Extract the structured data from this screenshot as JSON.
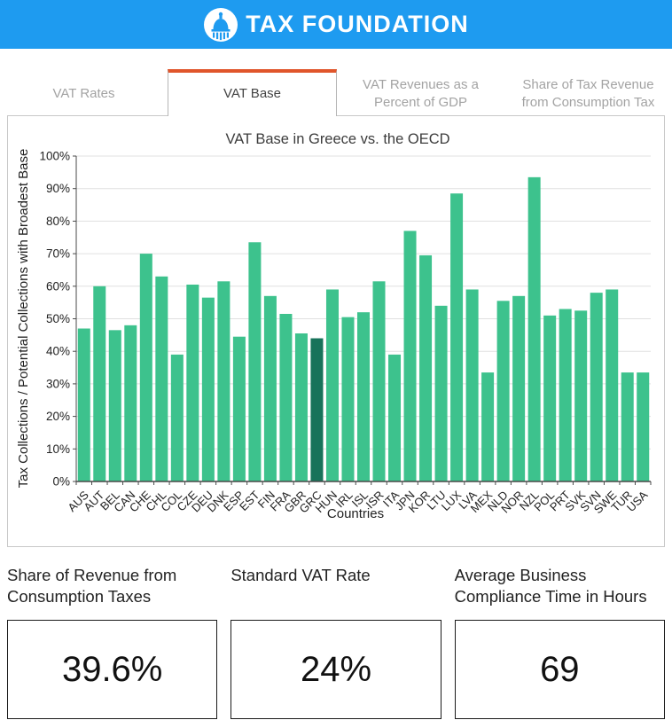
{
  "header": {
    "brand": "TAX FOUNDATION",
    "background_color": "#1E9BF0",
    "logo_icon": "capitol-dome-icon"
  },
  "tabs": {
    "active_index": 1,
    "active_border_color": "#E0552B",
    "items": [
      {
        "label": "VAT Rates"
      },
      {
        "label": "VAT Base"
      },
      {
        "label": "VAT Revenues as a Percent of GDP"
      },
      {
        "label": "Share of Tax Revenue from Consumption Tax"
      }
    ]
  },
  "chart_data": {
    "type": "bar",
    "title": "VAT Base in Greece vs. the OECD",
    "xlabel": "Countries",
    "ylabel": "Tax Collections / Potential Collections with Broadest Base",
    "ylim": [
      0,
      100
    ],
    "ytick_step": 10,
    "yticks": [
      "0%",
      "10%",
      "20%",
      "30%",
      "40%",
      "50%",
      "60%",
      "70%",
      "80%",
      "90%",
      "100%"
    ],
    "grid": true,
    "legend": "none",
    "bar_color": "#3DC28D",
    "highlight_category": "GRC",
    "highlight_color": "#17735A",
    "categories": [
      "AUS",
      "AUT",
      "BEL",
      "CAN",
      "CHE",
      "CHL",
      "COL",
      "CZE",
      "DEU",
      "DNK",
      "ESP",
      "EST",
      "FIN",
      "FRA",
      "GBR",
      "GRC",
      "HUN",
      "IRL",
      "ISL",
      "ISR",
      "ITA",
      "JPN",
      "KOR",
      "LTU",
      "LUX",
      "LVA",
      "MEX",
      "NLD",
      "NOR",
      "NZL",
      "POL",
      "PRT",
      "SVK",
      "SVN",
      "SWE",
      "TUR",
      "USA"
    ],
    "values": [
      47,
      60,
      46.5,
      48,
      70,
      63,
      39,
      60.5,
      56.5,
      61.5,
      44.5,
      73.5,
      57,
      51.5,
      45.5,
      44,
      59,
      50.5,
      52,
      61.5,
      39,
      77,
      69.5,
      54,
      88.5,
      59,
      33.5,
      55.5,
      57,
      93.5,
      51,
      53,
      52.5,
      58,
      59,
      33.5,
      33.5
    ]
  },
  "stats": {
    "items": [
      {
        "label": "Share of Revenue from\nConsumption Taxes",
        "value": "39.6%"
      },
      {
        "label": "Standard VAT Rate",
        "value": "24%"
      },
      {
        "label": "Average Business\nCompliance Time in Hours",
        "value": "69"
      }
    ]
  }
}
